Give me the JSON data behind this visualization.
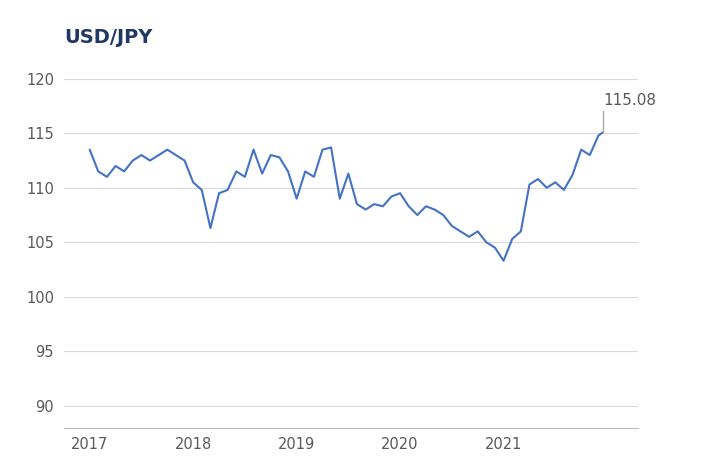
{
  "title": "USD/JPY",
  "title_color": "#1f3864",
  "title_fontsize": 14,
  "line_color": "#4472c4",
  "annotation_text": "115.08",
  "annotation_color": "#595959",
  "background_color": "#ffffff",
  "grid_color": "#d9d9d9",
  "axis_label_color": "#595959",
  "ylim": [
    88,
    122
  ],
  "yticks": [
    90,
    95,
    100,
    105,
    110,
    115,
    120
  ],
  "xlim": [
    2016.75,
    2022.3
  ],
  "xtick_positions": [
    2017,
    2018,
    2019,
    2020,
    2021
  ],
  "xtick_labels": [
    "2017",
    "2018",
    "2019",
    "2020",
    "2021"
  ],
  "data": {
    "x": [
      2017.0,
      2017.083,
      2017.167,
      2017.25,
      2017.333,
      2017.417,
      2017.5,
      2017.583,
      2017.667,
      2017.75,
      2017.833,
      2017.917,
      2018.0,
      2018.083,
      2018.167,
      2018.25,
      2018.333,
      2018.417,
      2018.5,
      2018.583,
      2018.667,
      2018.75,
      2018.833,
      2018.917,
      2019.0,
      2019.083,
      2019.167,
      2019.25,
      2019.333,
      2019.417,
      2019.5,
      2019.583,
      2019.667,
      2019.75,
      2019.833,
      2019.917,
      2020.0,
      2020.083,
      2020.167,
      2020.25,
      2020.333,
      2020.417,
      2020.5,
      2020.583,
      2020.667,
      2020.75,
      2020.833,
      2020.917,
      2021.0,
      2021.083,
      2021.167,
      2021.25,
      2021.333,
      2021.417,
      2021.5,
      2021.583,
      2021.667,
      2021.75,
      2021.833,
      2021.917,
      2021.96
    ],
    "y": [
      113.5,
      111.5,
      111.0,
      112.0,
      111.5,
      112.5,
      113.0,
      112.5,
      113.0,
      113.5,
      113.0,
      112.5,
      110.5,
      109.8,
      106.3,
      109.5,
      109.8,
      111.5,
      111.0,
      113.5,
      111.3,
      113.0,
      112.8,
      111.5,
      109.0,
      111.5,
      111.0,
      113.5,
      113.7,
      109.0,
      111.3,
      108.5,
      108.0,
      108.5,
      108.3,
      109.2,
      109.5,
      108.3,
      107.5,
      108.3,
      108.0,
      107.5,
      106.5,
      106.0,
      105.5,
      106.0,
      105.0,
      104.5,
      103.3,
      105.3,
      106.0,
      110.3,
      110.8,
      110.0,
      110.5,
      109.8,
      111.2,
      113.5,
      113.0,
      114.8,
      115.08
    ]
  }
}
